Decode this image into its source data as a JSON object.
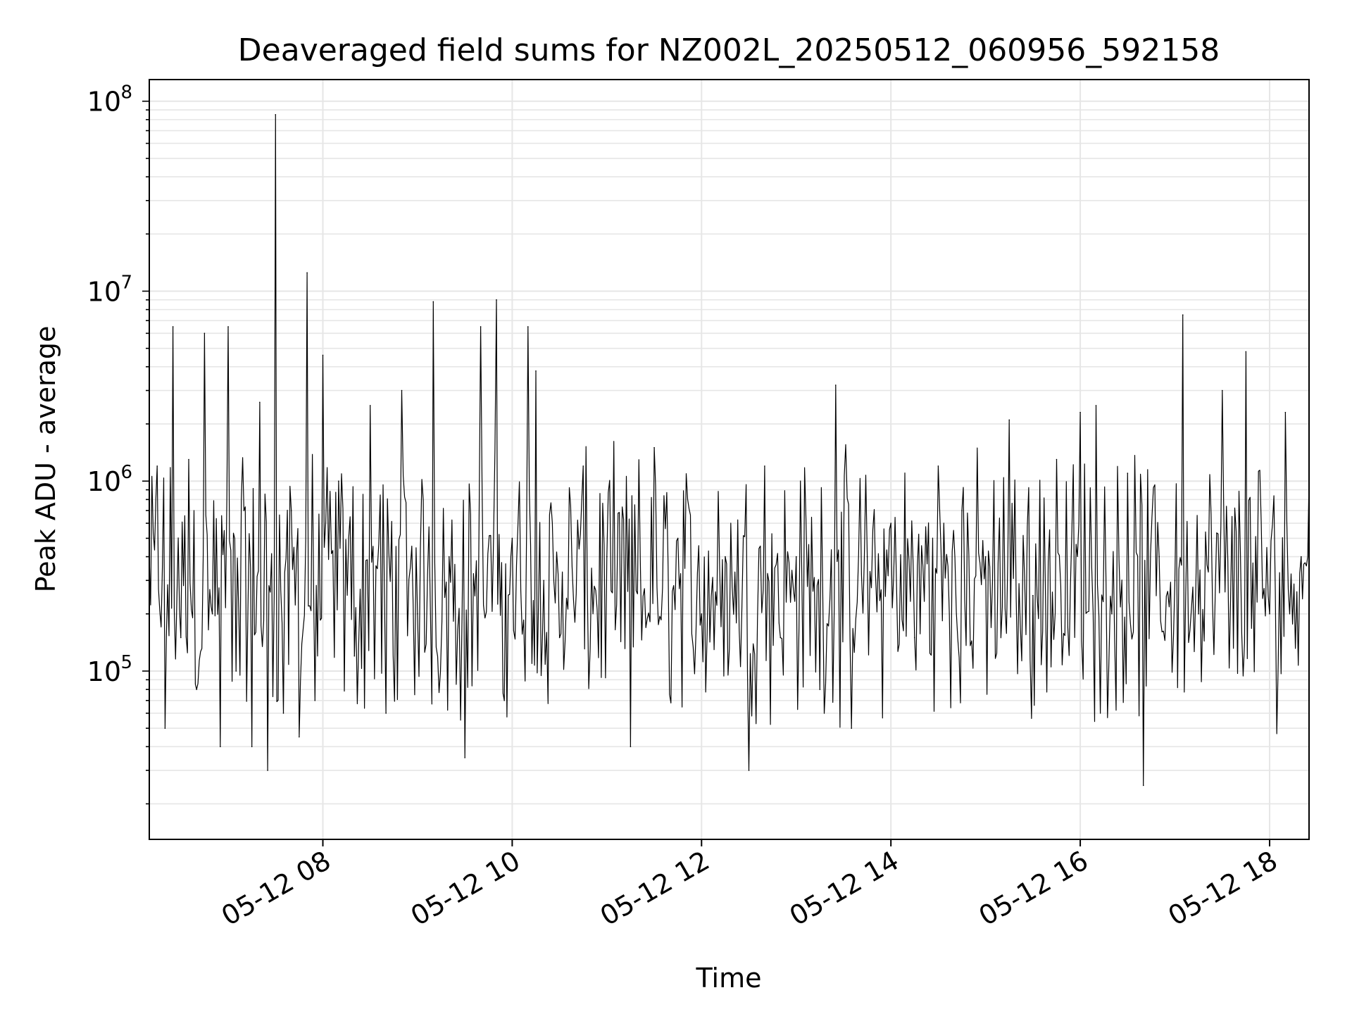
{
  "chart_data": {
    "type": "line",
    "title": "Deaveraged field sums for NZ002L_20250512_060956_592158",
    "xlabel": "Time",
    "ylabel": "Peak ADU - average",
    "yscale": "log",
    "ylim": [
      13000,
      130000000
    ],
    "xlim": [
      "2025-05-12 06:10",
      "2025-05-12 18:25"
    ],
    "x_ticks": [
      {
        "value": "2025-05-12 08:00",
        "label": "05-12 08"
      },
      {
        "value": "2025-05-12 10:00",
        "label": "05-12 10"
      },
      {
        "value": "2025-05-12 12:00",
        "label": "05-12 12"
      },
      {
        "value": "2025-05-12 14:00",
        "label": "05-12 14"
      },
      {
        "value": "2025-05-12 16:00",
        "label": "05-12 16"
      },
      {
        "value": "2025-05-12 18:00",
        "label": "05-12 18"
      }
    ],
    "y_ticks": [
      {
        "value": 100000,
        "base": "10",
        "exp": "5"
      },
      {
        "value": 1000000,
        "base": "10",
        "exp": "6"
      },
      {
        "value": 10000000,
        "base": "10",
        "exp": "7"
      },
      {
        "value": 100000000,
        "base": "10",
        "exp": "8"
      }
    ],
    "grid": true,
    "line_color": "#000000",
    "grid_color": "#e6e6e6",
    "series": [
      {
        "x": [
          "2025-05-12 06:10",
          "2025-05-12 06:15",
          "2025-05-12 06:20",
          "2025-05-12 06:25",
          "2025-05-12 06:30",
          "2025-05-12 06:35",
          "2025-05-12 06:40",
          "2025-05-12 06:45",
          "2025-05-12 06:50",
          "2025-05-12 06:55",
          "2025-05-12 07:00",
          "2025-05-12 07:05",
          "2025-05-12 07:10",
          "2025-05-12 07:15",
          "2025-05-12 07:20",
          "2025-05-12 07:25",
          "2025-05-12 07:30",
          "2025-05-12 07:35",
          "2025-05-12 07:40",
          "2025-05-12 07:45",
          "2025-05-12 07:50",
          "2025-05-12 07:55",
          "2025-05-12 08:00",
          "2025-05-12 08:10",
          "2025-05-12 08:20",
          "2025-05-12 08:30",
          "2025-05-12 08:40",
          "2025-05-12 08:50",
          "2025-05-12 09:00",
          "2025-05-12 09:10",
          "2025-05-12 09:20",
          "2025-05-12 09:30",
          "2025-05-12 09:40",
          "2025-05-12 09:50",
          "2025-05-12 09:55",
          "2025-05-12 10:00",
          "2025-05-12 10:10",
          "2025-05-12 10:15",
          "2025-05-12 10:20",
          "2025-05-12 10:30",
          "2025-05-12 10:45",
          "2025-05-12 11:00",
          "2025-05-12 11:15",
          "2025-05-12 11:30",
          "2025-05-12 11:45",
          "2025-05-12 12:00",
          "2025-05-12 12:15",
          "2025-05-12 12:30",
          "2025-05-12 12:40",
          "2025-05-12 12:50",
          "2025-05-12 13:00",
          "2025-05-12 13:15",
          "2025-05-12 13:25",
          "2025-05-12 13:35",
          "2025-05-12 13:45",
          "2025-05-12 14:00",
          "2025-05-12 14:15",
          "2025-05-12 14:30",
          "2025-05-12 14:45",
          "2025-05-12 15:00",
          "2025-05-12 15:15",
          "2025-05-12 15:30",
          "2025-05-12 15:45",
          "2025-05-12 16:00",
          "2025-05-12 16:10",
          "2025-05-12 16:20",
          "2025-05-12 16:30",
          "2025-05-12 16:40",
          "2025-05-12 16:50",
          "2025-05-12 17:00",
          "2025-05-12 17:05",
          "2025-05-12 17:15",
          "2025-05-12 17:30",
          "2025-05-12 17:45",
          "2025-05-12 18:00",
          "2025-05-12 18:10",
          "2025-05-12 18:20",
          "2025-05-12 18:25"
        ],
        "y": [
          400000,
          1200000,
          50000,
          6500000,
          150000,
          1300000,
          80000,
          6000000,
          200000,
          40000,
          6500000,
          100000,
          700000,
          40000,
          2600000,
          30000,
          85000000,
          60000,
          700000,
          45000,
          12500000,
          70000,
          4600000,
          1000000,
          120000,
          2500000,
          60000,
          3000000,
          200000,
          8800000,
          400000,
          35000,
          6500000,
          9000000,
          70000,
          500000,
          6500000,
          3800000,
          300000,
          150000,
          1200000,
          400000,
          40000,
          1500000,
          500000,
          200000,
          400000,
          30000,
          1200000,
          150000,
          400000,
          80000,
          3200000,
          50000,
          400000,
          600000,
          150000,
          1200000,
          700000,
          400000,
          2100000,
          250000,
          1300000,
          2300000,
          2500000,
          200000,
          1100000,
          25000,
          400000,
          300000,
          7500000,
          200000,
          3000000,
          4800000,
          200000,
          2300000,
          400000,
          1000000
        ]
      }
    ]
  }
}
